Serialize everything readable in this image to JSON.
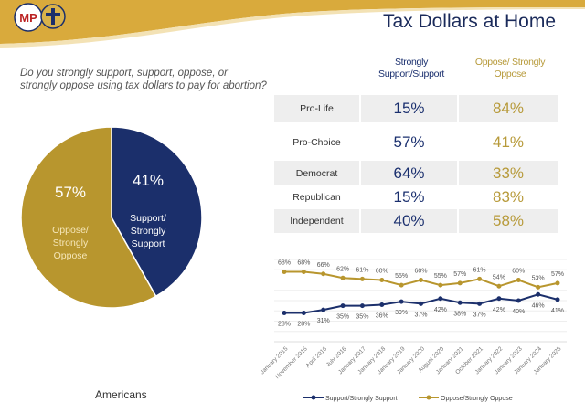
{
  "header": {
    "title": "Tax Dollars at Home",
    "logo_text": "MP"
  },
  "question": "Do you strongly support, support, oppose, or strongly oppose using tax dollars to pay for abortion?",
  "colors": {
    "navy": "#1b2f6b",
    "gold": "#b8962e",
    "header_gold": "#d9aa3c"
  },
  "table": {
    "col1": "Strongly Support/Support",
    "col2": "Oppose/ Strongly Oppose",
    "rows": [
      {
        "label": "Pro-Life",
        "support": "15%",
        "oppose": "84%"
      },
      {
        "label": "Pro-Choice",
        "support": "57%",
        "oppose": "41%"
      },
      {
        "label": "Democrat",
        "support": "64%",
        "oppose": "33%"
      },
      {
        "label": "Republican",
        "support": "15%",
        "oppose": "83%"
      },
      {
        "label": "Independent",
        "support": "40%",
        "oppose": "58%"
      }
    ]
  },
  "pie_caption": "Americans",
  "chart_data": [
    {
      "type": "pie",
      "slices": [
        {
          "label": "Support/ Strongly Support",
          "value": 41,
          "display": "41%",
          "color": "#1b2f6b"
        },
        {
          "label": "Oppose/ Strongly Oppose",
          "value": 57,
          "display": "57%",
          "color": "#b8962e"
        }
      ]
    },
    {
      "type": "line",
      "categories": [
        "January 2015",
        "November 2015",
        "April 2016",
        "July 2016",
        "January 2017",
        "January 2018",
        "January 2019",
        "January 2020",
        "August 2020",
        "January 2021",
        "October 2021",
        "January 2022",
        "January 2023",
        "January 2024",
        "January 2025"
      ],
      "series": [
        {
          "name": "Support/Strongly Support",
          "color": "#1b2f6b",
          "values": [
            28,
            28,
            31,
            35,
            35,
            36,
            39,
            37,
            42,
            38,
            37,
            42,
            40,
            46,
            41
          ]
        },
        {
          "name": "Oppose/Strongly Oppose",
          "color": "#b8962e",
          "values": [
            68,
            68,
            66,
            62,
            61,
            60,
            55,
            60,
            55,
            57,
            61,
            54,
            60,
            53,
            57
          ]
        }
      ],
      "ylim": [
        0,
        80
      ],
      "grid": true,
      "legend": "bottom"
    }
  ]
}
